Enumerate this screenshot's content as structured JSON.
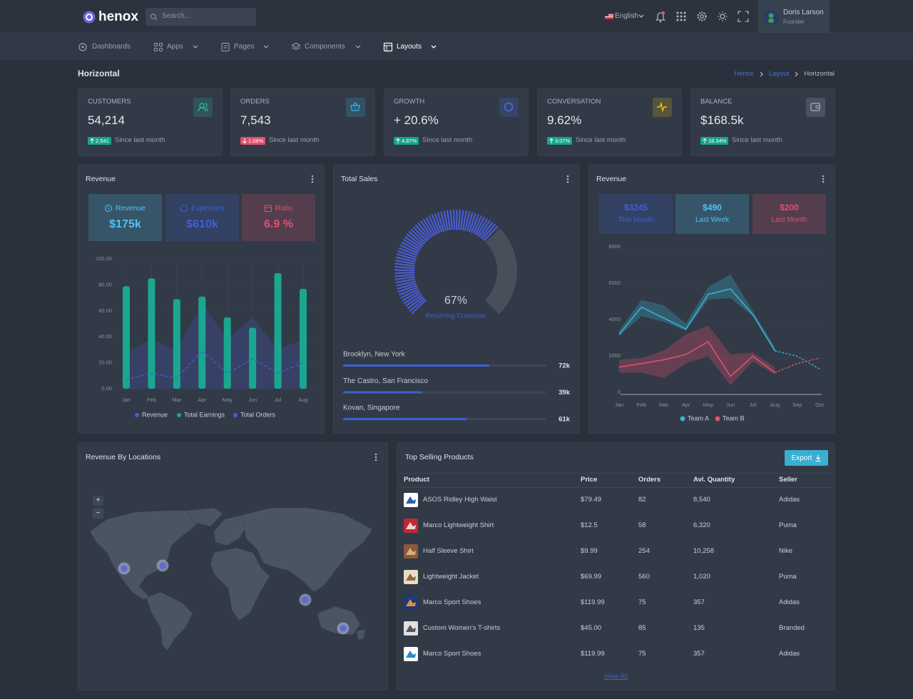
{
  "header": {
    "brand": "henox",
    "search_placeholder": "Search...",
    "language": "English",
    "user": {
      "name": "Doris Larson",
      "role": "Founder"
    }
  },
  "nav": [
    {
      "label": "Dashboards",
      "dropdown": false,
      "active": false
    },
    {
      "label": "Apps",
      "dropdown": true,
      "active": false
    },
    {
      "label": "Pages",
      "dropdown": true,
      "active": false
    },
    {
      "label": "Components",
      "dropdown": true,
      "active": false
    },
    {
      "label": "Layouts",
      "dropdown": true,
      "active": true
    }
  ],
  "page": {
    "title": "Horizontal",
    "breadcrumb": [
      "Henox",
      "Layout",
      "Horizontal"
    ]
  },
  "stats": [
    {
      "label": "CUSTOMERS",
      "value": "54,214",
      "change": "2,541",
      "direction": "up",
      "note": "Since last month",
      "color": "#2ec4a6"
    },
    {
      "label": "ORDERS",
      "value": "7,543",
      "change": "1.08%",
      "direction": "down",
      "note": "Since last month",
      "color": "#3ab3e6"
    },
    {
      "label": "GROWTH",
      "value": "+ 20.6%",
      "change": "4.87%",
      "direction": "up",
      "note": "Since last month",
      "color": "#4b6fe0"
    },
    {
      "label": "CONVERSATION",
      "value": "9.62%",
      "change": "3.07%",
      "direction": "up",
      "note": "Since last month",
      "color": "#f5c518"
    },
    {
      "label": "BALANCE",
      "value": "$168.5k",
      "change": "18.34%",
      "direction": "up",
      "note": "Since last month",
      "color": "#aab3c0"
    }
  ],
  "revenue_card": {
    "title": "Revenue",
    "summary": [
      {
        "label": "Revenue",
        "value": "$175k",
        "color": "#4fc3f7"
      },
      {
        "label": "Expenses",
        "value": "$610k",
        "color": "#3e60d5"
      },
      {
        "label": "Ratio",
        "value": "6.9 %",
        "color": "#e0506f"
      }
    ],
    "chart_data": {
      "type": "bar",
      "categories": [
        "Jan",
        "Feb",
        "Mar",
        "Apr",
        "May",
        "Jun",
        "Jul",
        "Aug"
      ],
      "ylim": [
        0,
        100
      ],
      "yticks": [
        {
          "value": 0,
          "label": "0.00"
        },
        {
          "value": 20,
          "label": "20.00"
        },
        {
          "value": 40,
          "label": "40.00"
        },
        {
          "value": 60,
          "label": "60.00"
        },
        {
          "value": 80,
          "label": "80.00"
        },
        {
          "value": 100,
          "label": "100.00"
        }
      ],
      "grid": true,
      "series": [
        {
          "name": "Revenue",
          "type": "area",
          "color": "#4a5bd4",
          "values": [
            28,
            38,
            30,
            66,
            38,
            55,
            30,
            38
          ]
        },
        {
          "name": "Total Earnings",
          "type": "bar",
          "color": "#1aa68f",
          "values": [
            79,
            85,
            69,
            71,
            55,
            47,
            89,
            77
          ]
        },
        {
          "name": "Total Orders",
          "type": "line",
          "dashed": true,
          "color": "#4a5bd4",
          "values": [
            7,
            12,
            8,
            29,
            12,
            23,
            12,
            20
          ]
        }
      ]
    }
  },
  "sales_card": {
    "title": "Total Sales",
    "chart_data": {
      "type": "gauge",
      "value": 67,
      "value_label": "67%",
      "label": "Returning Customer",
      "ylim": [
        0,
        100
      ],
      "color": "#4a5bd4"
    },
    "locations": {
      "type": "progress",
      "categories": [
        "Brooklyn, New York",
        "The Castro, San Francisco",
        "Kovan, Singapore"
      ],
      "values": [
        72000,
        39000,
        61000
      ],
      "value_labels": [
        "72k",
        "39k",
        "61k"
      ],
      "xlim": [
        0,
        100000
      ],
      "color": "#3e60d5"
    }
  },
  "team_card": {
    "title": "Revenue",
    "summary": [
      {
        "value": "$3245",
        "label": "This Month",
        "color": "#3e60d5"
      },
      {
        "value": "$490",
        "label": "Last Week",
        "color": "#4fc3f7"
      },
      {
        "value": "$200",
        "label": "Last Month",
        "color": "#e0506f"
      }
    ],
    "chart_data": {
      "type": "line",
      "categories": [
        "Jan",
        "Feb",
        "Mar",
        "Apr",
        "May",
        "Jun",
        "Jul",
        "Aug",
        "Sep",
        "Oct"
      ],
      "ylim": [
        0,
        8000
      ],
      "yticks": [
        0,
        2000,
        4000,
        6000,
        8000
      ],
      "grid": true,
      "dashed_from": "Aug",
      "series": [
        {
          "name": "Team A",
          "color": "#39afd1",
          "values": [
            3300,
            4800,
            4200,
            3600,
            5500,
            5800,
            4400,
            2400,
            2100,
            1400
          ],
          "band": {
            "low": [
              3200,
              4300,
              4000,
              3500,
              5200,
              5300,
              4300,
              2300,
              null,
              null
            ],
            "high": [
              3500,
              5200,
              4900,
              3900,
              5900,
              6600,
              4600,
              2600,
              null,
              null
            ]
          }
        },
        {
          "name": "Team B",
          "color": "#e0506f",
          "values": [
            1500,
            1700,
            1900,
            2200,
            2900,
            1000,
            2100,
            1200,
            1700,
            2000
          ],
          "band": {
            "low": [
              1200,
              1200,
              900,
              1700,
              2100,
              500,
              1800,
              1100,
              null,
              null
            ],
            "high": [
              1900,
              2000,
              2400,
              3300,
              3800,
              2200,
              2300,
              1500,
              null,
              null
            ]
          }
        }
      ]
    }
  },
  "map_card": {
    "title": "Revenue By Locations",
    "zoom_in": "+",
    "zoom_out": "−"
  },
  "table": {
    "title": "Top Selling Products",
    "button": "Export",
    "columns": [
      "Product",
      "Price",
      "Orders",
      "Avl. Quantity",
      "Seller"
    ],
    "rows": [
      [
        "ASOS Ridley High Waist",
        "$79.49",
        "82",
        "8,540",
        "Adidas"
      ],
      [
        "Marco Lightweight Shirt",
        "$12.5",
        "58",
        "6,320",
        "Puma"
      ],
      [
        "Half Sleeve Shirt",
        "$9.99",
        "254",
        "10,258",
        "Nike"
      ],
      [
        "Lightweight Jacket",
        "$69.99",
        "560",
        "1,020",
        "Puma"
      ],
      [
        "Marco Sport Shoes",
        "$119.99",
        "75",
        "357",
        "Adidas"
      ],
      [
        "Custom Women's T-shirts",
        "$45.00",
        "85",
        "135",
        "Branded"
      ],
      [
        "Marco Sport Shoes",
        "$119.99",
        "75",
        "357",
        "Adidas"
      ]
    ],
    "footer_link": "View All"
  }
}
